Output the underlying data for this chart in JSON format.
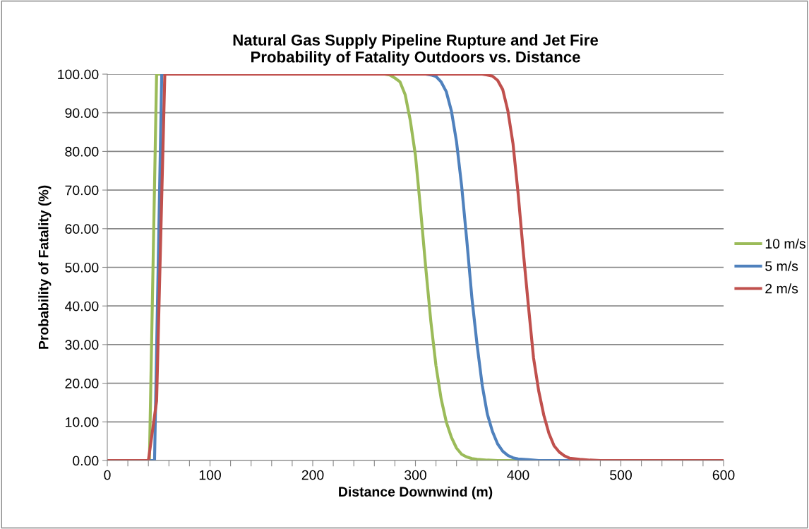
{
  "chart_data": {
    "type": "line",
    "title": "Natural Gas Supply Pipeline Rupture and Jet Fire\nProbability of Fatality Outdoors vs. Distance",
    "xlabel": "Distance Downwind (m)",
    "ylabel": "Probability of Fatality (%)",
    "xlim": [
      0,
      600
    ],
    "ylim": [
      0,
      100
    ],
    "xticks": [
      0,
      {
        "value": 20,
        "label": null
      },
      {
        "value": 40,
        "label": null
      },
      {
        "value": 60,
        "label": null
      },
      {
        "value": 80,
        "label": null
      },
      100,
      {
        "value": 120,
        "label": null
      },
      {
        "value": 140,
        "label": null
      },
      {
        "value": 160,
        "label": null
      },
      {
        "value": 180,
        "label": null
      },
      200,
      {
        "value": 220,
        "label": null
      },
      {
        "value": 240,
        "label": null
      },
      {
        "value": 260,
        "label": null
      },
      {
        "value": 280,
        "label": null
      },
      300,
      {
        "value": 320,
        "label": null
      },
      {
        "value": 340,
        "label": null
      },
      {
        "value": 360,
        "label": null
      },
      {
        "value": 380,
        "label": null
      },
      400,
      {
        "value": 420,
        "label": null
      },
      {
        "value": 440,
        "label": null
      },
      {
        "value": 460,
        "label": null
      },
      {
        "value": 480,
        "label": null
      },
      500,
      {
        "value": 520,
        "label": null
      },
      {
        "value": 540,
        "label": null
      },
      {
        "value": 560,
        "label": null
      },
      {
        "value": 580,
        "label": null
      },
      600
    ],
    "yticks": [
      {
        "value": 0,
        "label": "0.00"
      },
      {
        "value": 10,
        "label": "10.00"
      },
      {
        "value": 20,
        "label": "20.00"
      },
      {
        "value": 30,
        "label": "30.00"
      },
      {
        "value": 40,
        "label": "40.00"
      },
      {
        "value": 50,
        "label": "50.00"
      },
      {
        "value": 60,
        "label": "60.00"
      },
      {
        "value": 70,
        "label": "70.00"
      },
      {
        "value": 80,
        "label": "80.00"
      },
      {
        "value": 90,
        "label": "90.00"
      },
      {
        "value": 100,
        "label": "100.00"
      }
    ],
    "grid": "y",
    "legend": "right",
    "marker": "none",
    "line_style": "solid",
    "series": [
      {
        "name": "10 m/s",
        "color": "#9bbb59",
        "x": [
          0,
          41,
          48,
          270,
          275,
          280,
          285,
          290,
          295,
          300,
          305,
          310,
          315,
          320,
          325,
          330,
          335,
          340,
          345,
          350,
          355,
          360,
          370,
          380,
          600
        ],
        "values": [
          0,
          0,
          100,
          100,
          99.8,
          99,
          98,
          94.7,
          88,
          79,
          65,
          50,
          36,
          24.5,
          16,
          10,
          6,
          3.2,
          1.6,
          0.9,
          0.5,
          0.3,
          0.1,
          0,
          0
        ]
      },
      {
        "name": "5 m/s",
        "color": "#4f81bd",
        "x": [
          0,
          46,
          53,
          310,
          315,
          320,
          325,
          330,
          335,
          340,
          345,
          350,
          355,
          360,
          365,
          370,
          375,
          380,
          385,
          390,
          395,
          400,
          410,
          420,
          600
        ],
        "values": [
          0,
          0,
          100,
          100,
          99.8,
          99.4,
          98,
          95.5,
          90.5,
          82.5,
          71,
          57,
          42,
          30,
          19.5,
          12,
          7.5,
          4.3,
          2.4,
          1.3,
          0.7,
          0.4,
          0.2,
          0,
          0
        ]
      },
      {
        "name": "2 m/s",
        "color": "#c0504d",
        "x": [
          0,
          40,
          48,
          56,
          100,
          200,
          300,
          365,
          370,
          375,
          380,
          385,
          390,
          395,
          400,
          405,
          410,
          415,
          420,
          425,
          430,
          435,
          440,
          445,
          450,
          460,
          470,
          480,
          600
        ],
        "values": [
          0,
          0,
          15.4,
          100,
          100,
          100,
          100,
          100,
          99.8,
          99.5,
          98.4,
          96,
          90.5,
          82,
          69,
          54,
          40,
          26.5,
          18,
          11.7,
          7,
          3.8,
          2.2,
          1.2,
          0.6,
          0.3,
          0.1,
          0,
          0
        ]
      }
    ]
  }
}
